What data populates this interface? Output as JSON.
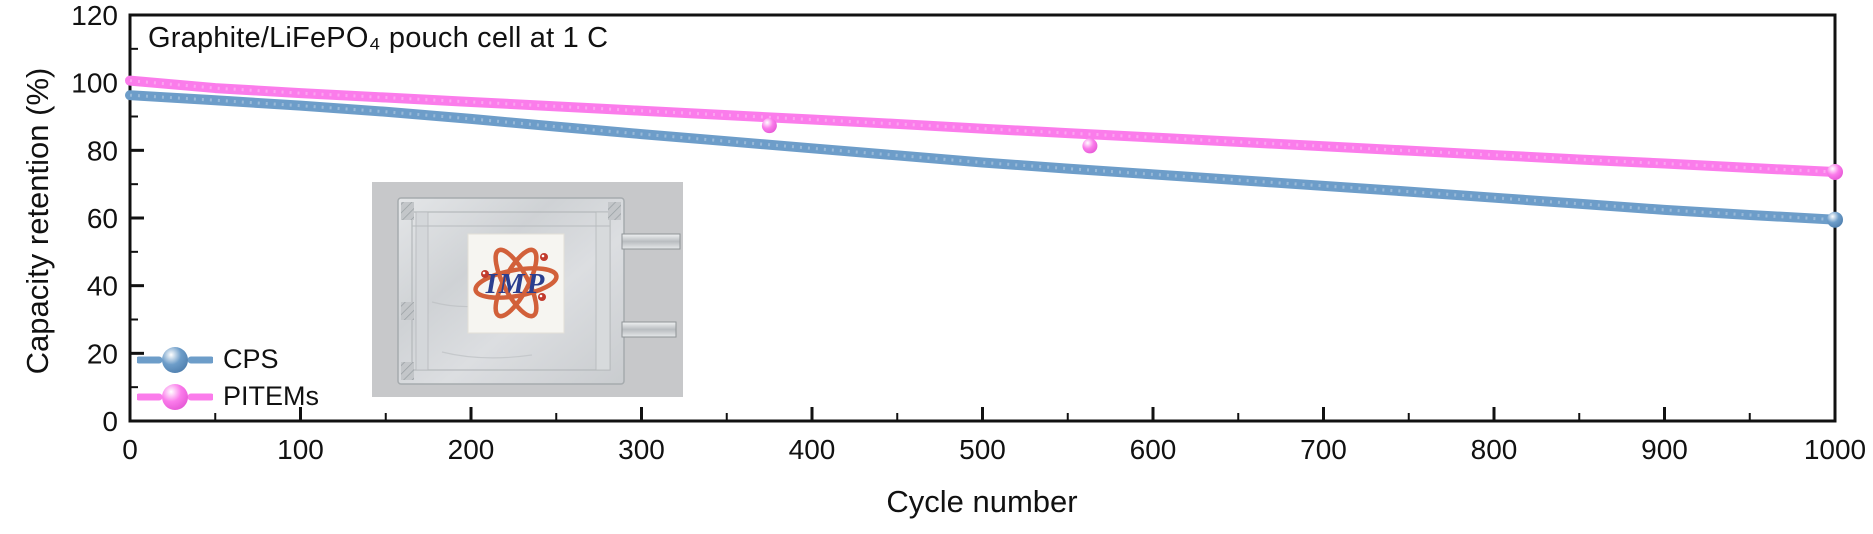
{
  "chart_data": {
    "type": "scatter",
    "title": "Graphite/LiFePO₄ pouch cell at 1 C",
    "xlabel": "Cycle number",
    "ylabel": "Capacity retention (%)",
    "xlim": [
      0,
      1000
    ],
    "ylim": [
      0,
      120
    ],
    "x_ticks": [
      0,
      100,
      200,
      300,
      400,
      500,
      600,
      700,
      800,
      900,
      1000
    ],
    "y_ticks": [
      0,
      20,
      40,
      60,
      80,
      100,
      120
    ],
    "x_minor_step": 50,
    "y_minor_step": 10,
    "grid": false,
    "legend_position": "lower-left",
    "categories_x": [
      0,
      50,
      100,
      150,
      200,
      250,
      300,
      350,
      400,
      450,
      500,
      550,
      600,
      650,
      700,
      750,
      800,
      850,
      900,
      950,
      1000
    ],
    "series": [
      {
        "name": "CPS",
        "color": "#6D9DC9",
        "color_dark": "#4878A8",
        "values": [
          96.3,
          94.8,
          93.2,
          91.4,
          89.3,
          87.0,
          84.8,
          82.7,
          80.6,
          78.5,
          76.4,
          74.6,
          72.9,
          71.2,
          69.5,
          67.8,
          66.0,
          64.2,
          62.4,
          60.9,
          59.5
        ],
        "end_value_pct": 59.5
      },
      {
        "name": "PITEMs",
        "color": "#FB7CEB",
        "color_dark": "#E04FD0",
        "values": [
          100.6,
          98.4,
          96.9,
          95.6,
          94.3,
          93.0,
          91.7,
          90.4,
          89.1,
          87.8,
          86.4,
          85.1,
          83.8,
          82.5,
          81.2,
          79.9,
          78.6,
          77.3,
          76.1,
          74.8,
          73.6
        ],
        "end_value_pct": 73.6,
        "outliers": [
          {
            "x": 375,
            "y": 87.3
          },
          {
            "x": 563,
            "y": 81.3
          }
        ]
      }
    ],
    "axis_color": "#111111"
  },
  "inset": {
    "logo_text": "IMP",
    "logo_text_color": "#2B3F8F",
    "orbit_color": "#D2603A",
    "electron_color": "#C23B2E",
    "photo_bg_color": "#c7c8ca",
    "description": "photo of aluminum pouch cell with IMP label and two metal tabs"
  }
}
